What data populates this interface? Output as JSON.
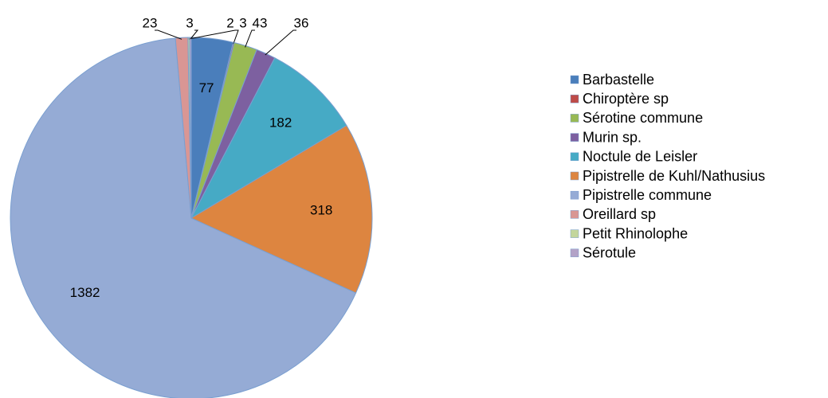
{
  "chart_data": {
    "type": "pie",
    "categories": [
      "Barbastelle",
      "Chiroptère sp",
      "Sérotine commune",
      "Murin sp.",
      "Noctule de Leisler",
      "Pipistrelle de Kuhl/Nathusius",
      "Pipistrelle commune",
      "Oreillard sp",
      "Petit Rhinolophe",
      "Sérotule"
    ],
    "values": [
      77,
      2,
      43,
      36,
      182,
      318,
      1382,
      23,
      3,
      3
    ],
    "colors": [
      "#4a7ebb",
      "#be4b48",
      "#98b954",
      "#7d60a0",
      "#46aac5",
      "#dd8540",
      "#95abd5",
      "#d99694",
      "#c3d69b",
      "#b3a2c7"
    ],
    "legend": "right"
  }
}
